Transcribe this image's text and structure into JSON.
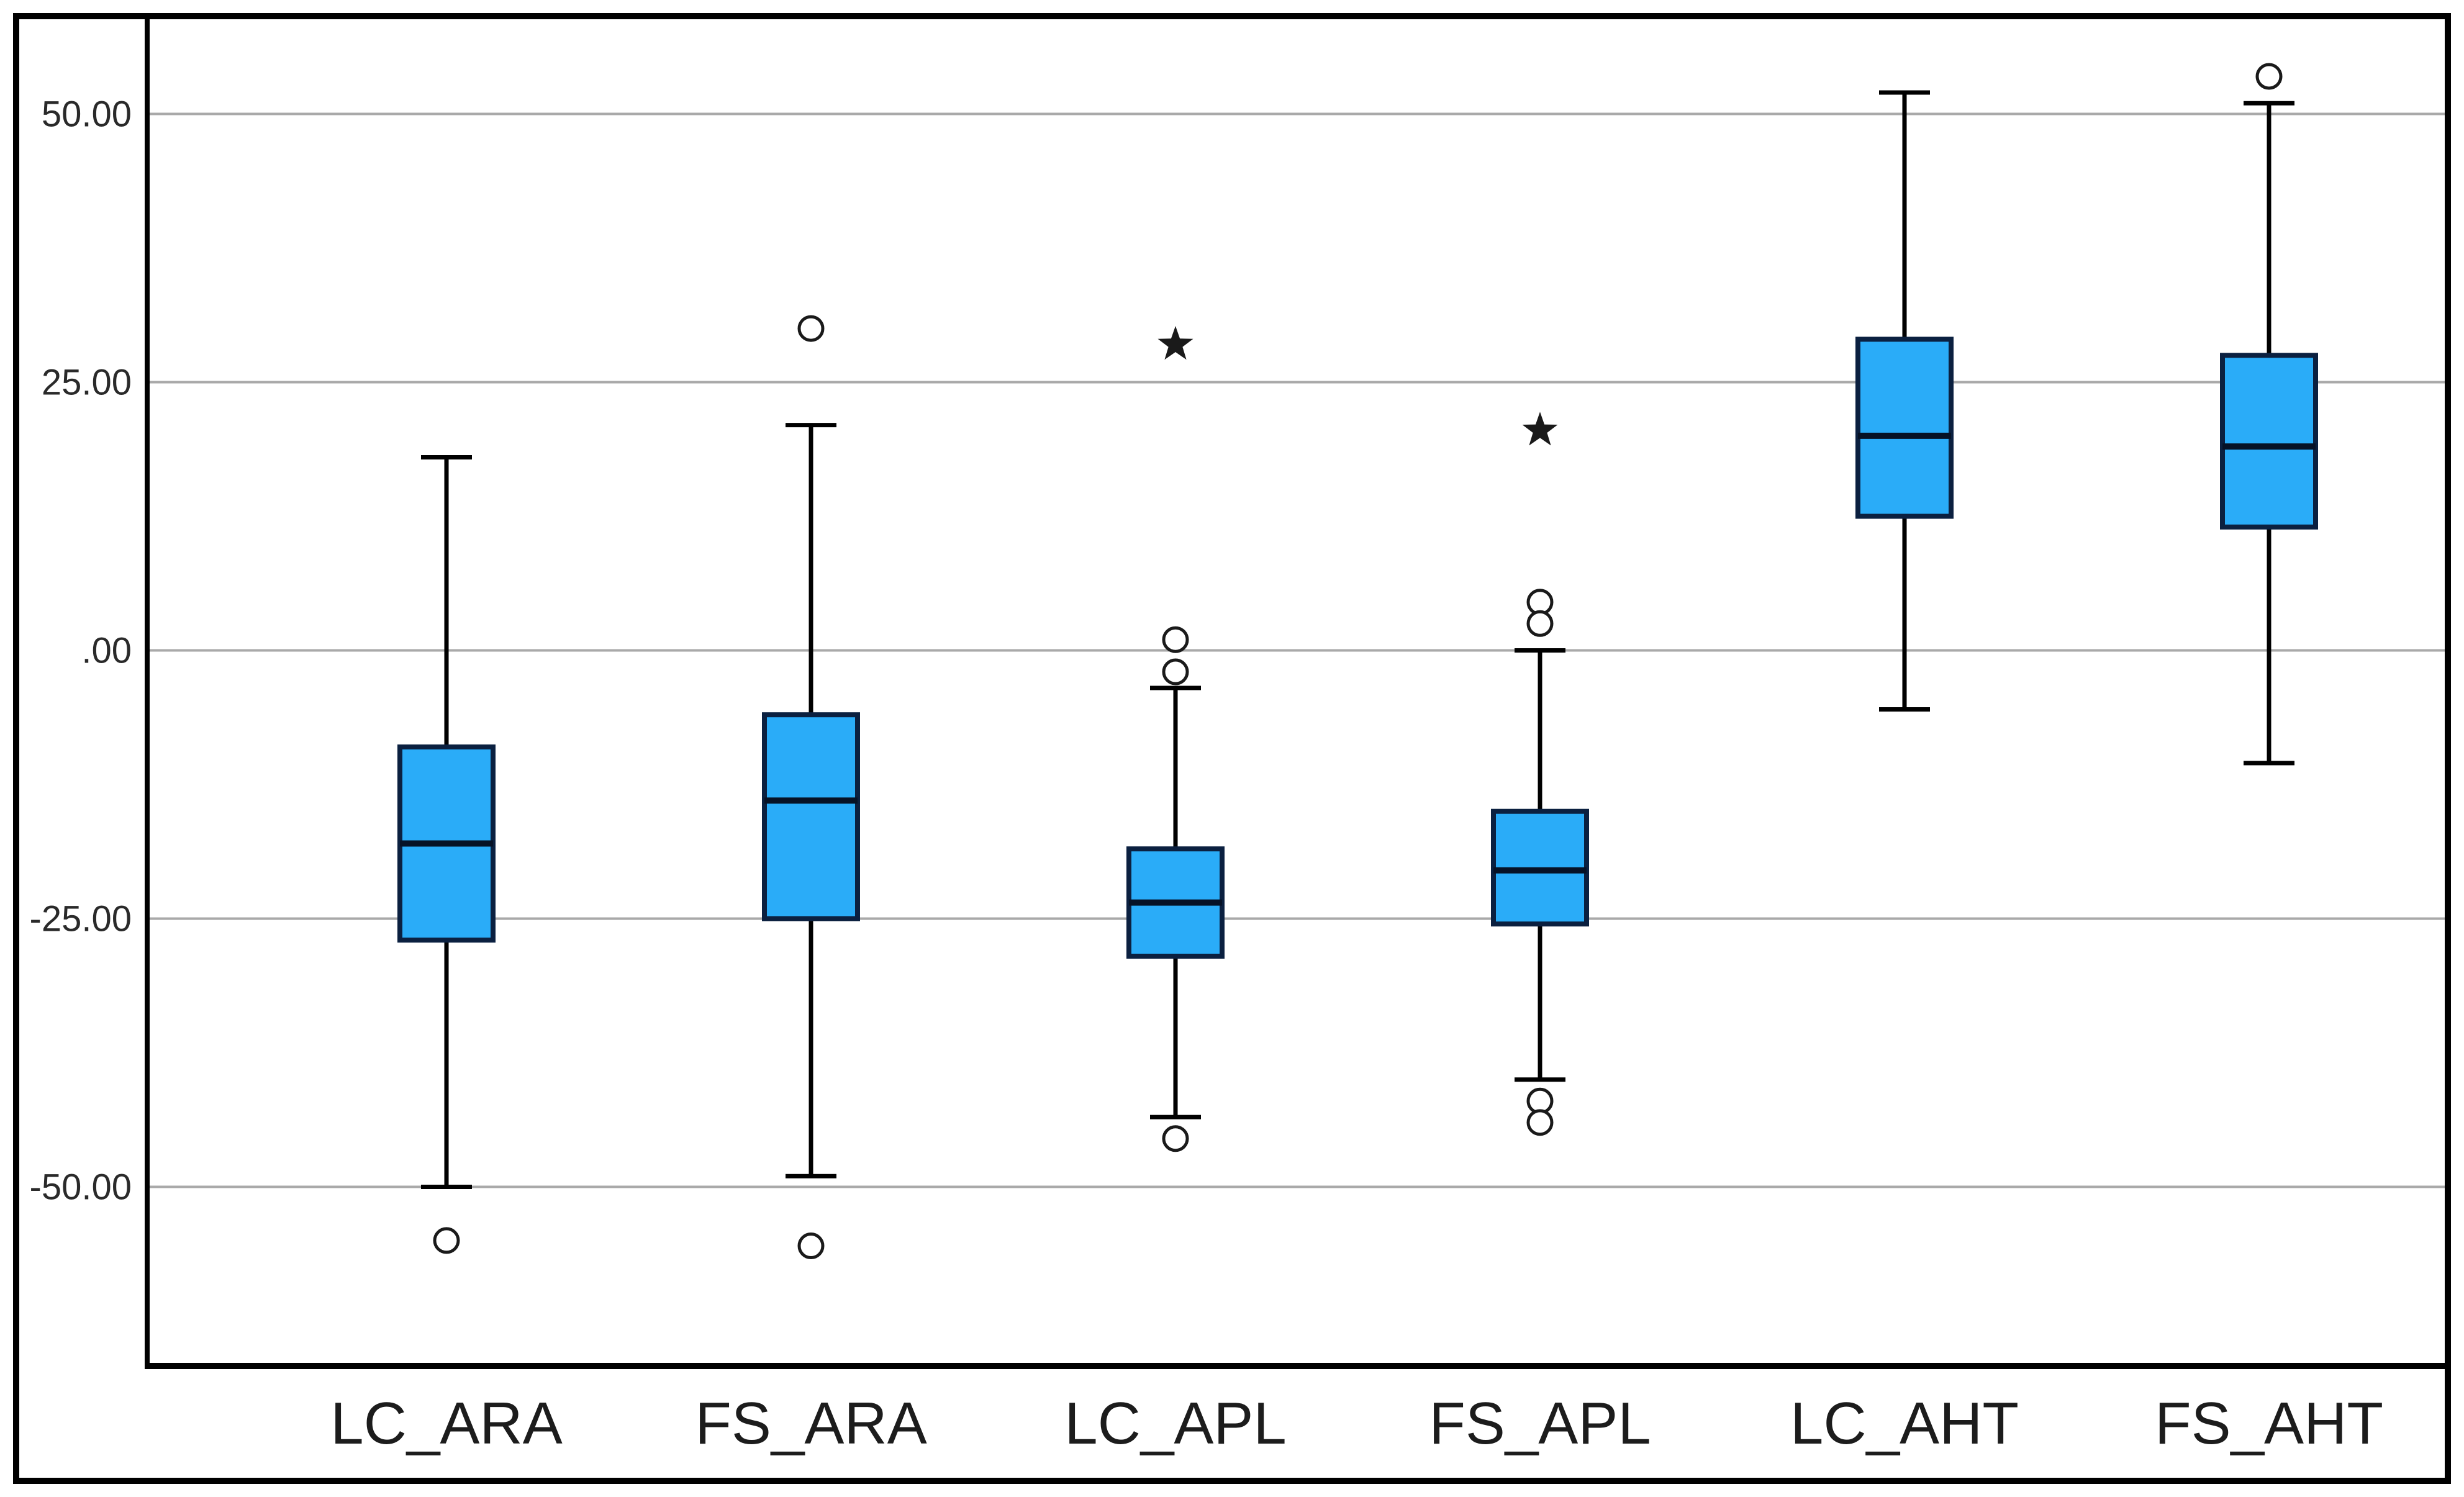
{
  "figure": {
    "background": "#ffffff",
    "border_color": "#000000"
  },
  "chart_data": {
    "type": "boxplot",
    "title": "",
    "xlabel": "",
    "ylabel": "",
    "categories": [
      "LC_ARA",
      "FS_ARA",
      "LC_APL",
      "FS_APL",
      "LC_AHT",
      "FS_AHT"
    ],
    "y_axis": {
      "tick_labels": [
        "50.00",
        "25.00",
        ".00",
        "-25.00",
        "-50.00"
      ],
      "tick_values": [
        50,
        25,
        0,
        -25,
        -50
      ],
      "ylim": [
        -66,
        59
      ],
      "grid": true
    },
    "series": [
      {
        "category": "LC_ARA",
        "whisker_low": -50,
        "q1": -27,
        "median": -18,
        "q3": -9,
        "whisker_high": 18,
        "outliers": [
          {
            "type": "circle",
            "value": -55
          }
        ]
      },
      {
        "category": "FS_ARA",
        "whisker_low": -49,
        "q1": -25,
        "median": -14,
        "q3": -6,
        "whisker_high": 21,
        "outliers": [
          {
            "type": "circle",
            "value": 30
          },
          {
            "type": "circle",
            "value": -55.5
          }
        ]
      },
      {
        "category": "LC_APL",
        "whisker_low": -43.5,
        "q1": -28.5,
        "median": -23.5,
        "q3": -18.5,
        "whisker_high": -3.5,
        "outliers": [
          {
            "type": "star",
            "value": 28.5
          },
          {
            "type": "circle",
            "value": 1
          },
          {
            "type": "circle",
            "value": -2
          },
          {
            "type": "circle",
            "value": -45.5
          }
        ]
      },
      {
        "category": "FS_APL",
        "whisker_low": -40,
        "q1": -25.5,
        "median": -20.5,
        "q3": -15,
        "whisker_high": 0,
        "outliers": [
          {
            "type": "star",
            "value": 20.5
          },
          {
            "type": "circle",
            "value": 4.5
          },
          {
            "type": "circle",
            "value": 2.5
          },
          {
            "type": "circle",
            "value": -42
          },
          {
            "type": "circle",
            "value": -44
          }
        ]
      },
      {
        "category": "LC_AHT",
        "whisker_low": -5.5,
        "q1": 12.5,
        "median": 20,
        "q3": 29,
        "whisker_high": 52,
        "outliers": []
      },
      {
        "category": "FS_AHT",
        "whisker_low": -10.5,
        "q1": 11.5,
        "median": 19,
        "q3": 27.5,
        "whisker_high": 51,
        "outliers": [
          {
            "type": "circle",
            "value": 53.5
          }
        ]
      }
    ],
    "legend": null,
    "style": {
      "box_fill": "#2aacf8",
      "box_border": "#0b2040",
      "median_color": "#061226",
      "whisker_color": "#000000",
      "cap_color": "#000000",
      "gridline_color": "#a9a9a9",
      "axis_color": "#000000",
      "outlier_color": "#1a1a1a",
      "tick_label_color": "#2a2a2a",
      "category_label_color": "#1c1c1c"
    }
  }
}
